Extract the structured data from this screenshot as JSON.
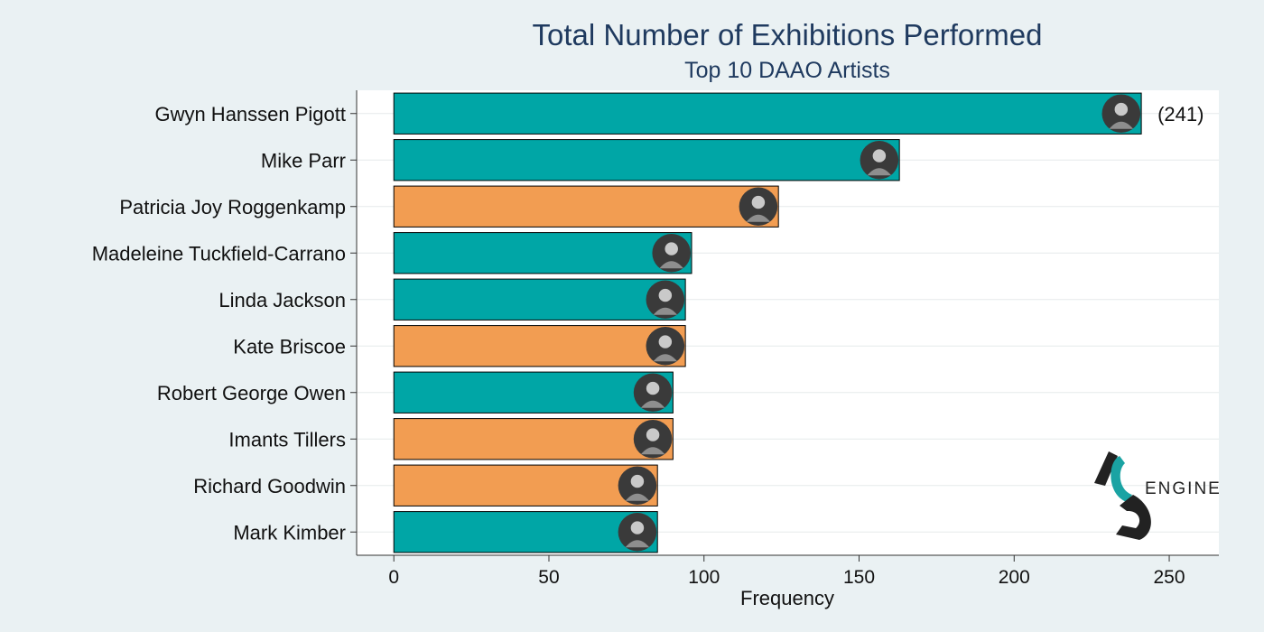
{
  "chart_data": {
    "type": "bar",
    "orientation": "horizontal",
    "title": "Total Number of Exhibitions Performed",
    "subtitle": "Top 10 DAAO Artists",
    "xlabel": "Frequency",
    "ylabel": "",
    "xlim": [
      -12,
      266
    ],
    "xticks": [
      0,
      50,
      100,
      150,
      200,
      250
    ],
    "grid": true,
    "categories": [
      "Gwyn Hanssen Pigott",
      "Mike Parr",
      "Patricia Joy Roggenkamp",
      "Madeleine Tuckfield-Carrano",
      "Linda Jackson",
      "Kate Briscoe",
      "Robert George Owen",
      "Imants Tillers",
      "Richard Goodwin",
      "Mark Kimber"
    ],
    "values": [
      241,
      163,
      124,
      96,
      94,
      94,
      90,
      90,
      85,
      85
    ],
    "bar_colors": [
      "#00a6a6",
      "#00a6a6",
      "#f29d52",
      "#00a6a6",
      "#00a6a6",
      "#f29d52",
      "#00a6a6",
      "#f29d52",
      "#f29d52",
      "#00a6a6"
    ],
    "data_labels": [
      {
        "index": 0,
        "text": "(241)"
      }
    ]
  },
  "logo": {
    "text": "ENGINE",
    "monogram_teal": "#1aa3a3",
    "monogram_dark": "#222222"
  },
  "colors": {
    "background": "#eaf1f3",
    "panel": "#ffffff",
    "teal": "#00a6a6",
    "orange": "#f29d52"
  }
}
